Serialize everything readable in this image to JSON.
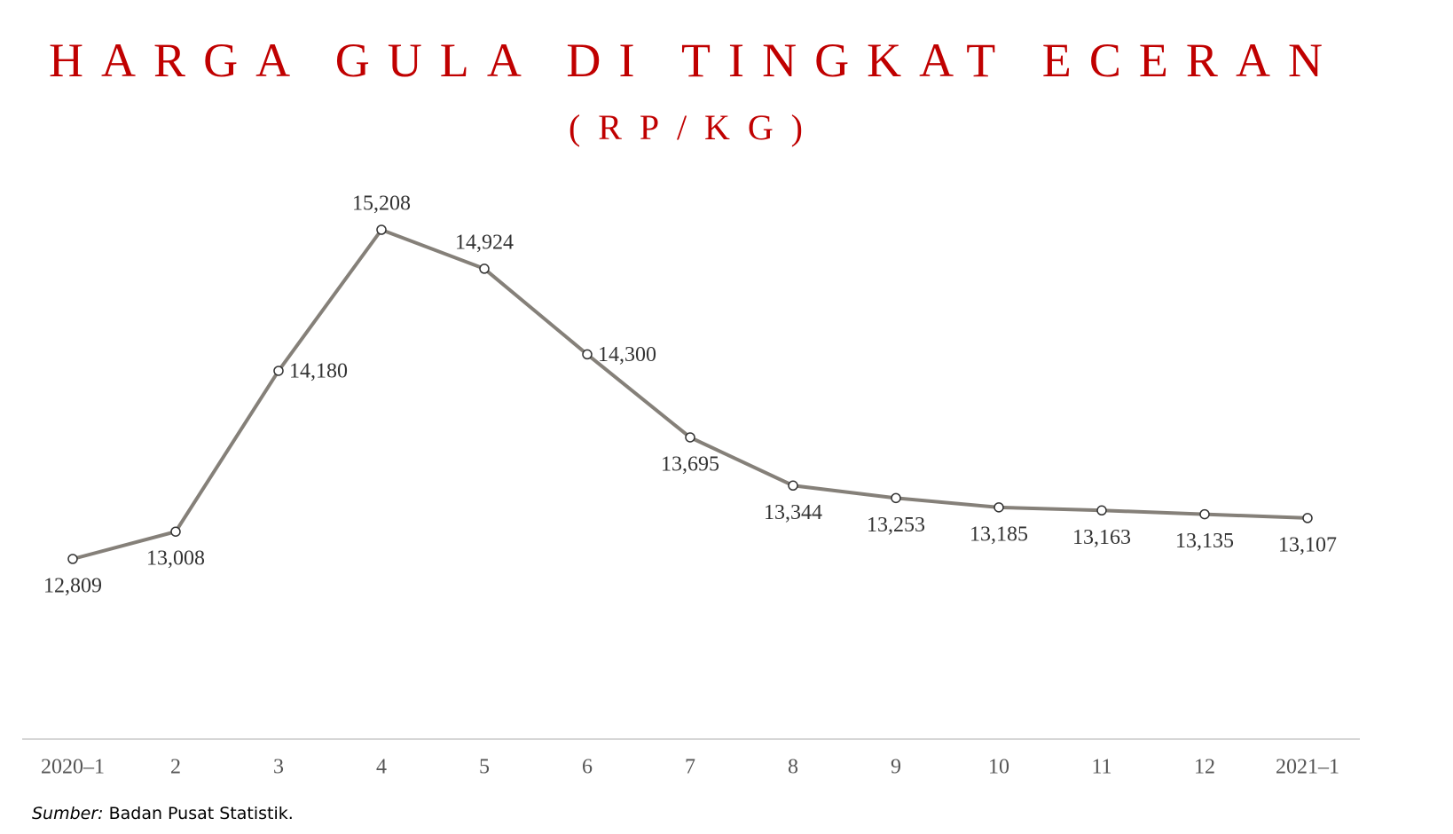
{
  "chart_data": {
    "type": "line",
    "title": "HARGA GULA DI TINGKAT ECERAN",
    "subtitle": "(RP/KG)",
    "categories": [
      "2020–1",
      "2",
      "3",
      "4",
      "5",
      "6",
      "7",
      "8",
      "9",
      "10",
      "11",
      "12",
      "2021–1"
    ],
    "series": [
      {
        "color": "#858079",
        "values": [
          12809,
          13008,
          14180,
          15208,
          14924,
          14300,
          13695,
          13344,
          13253,
          13185,
          13163,
          13135,
          13107
        ],
        "value_labels": [
          "12,809",
          "13,008",
          "14,180",
          "15,208",
          "14,924",
          "14,300",
          "13,695",
          "13,344",
          "13,253",
          "13,185",
          "13,163",
          "13,135",
          "13,107"
        ]
      }
    ],
    "source": {
      "label": "Sumber:",
      "text": "Badan Pusat Statistik."
    }
  }
}
